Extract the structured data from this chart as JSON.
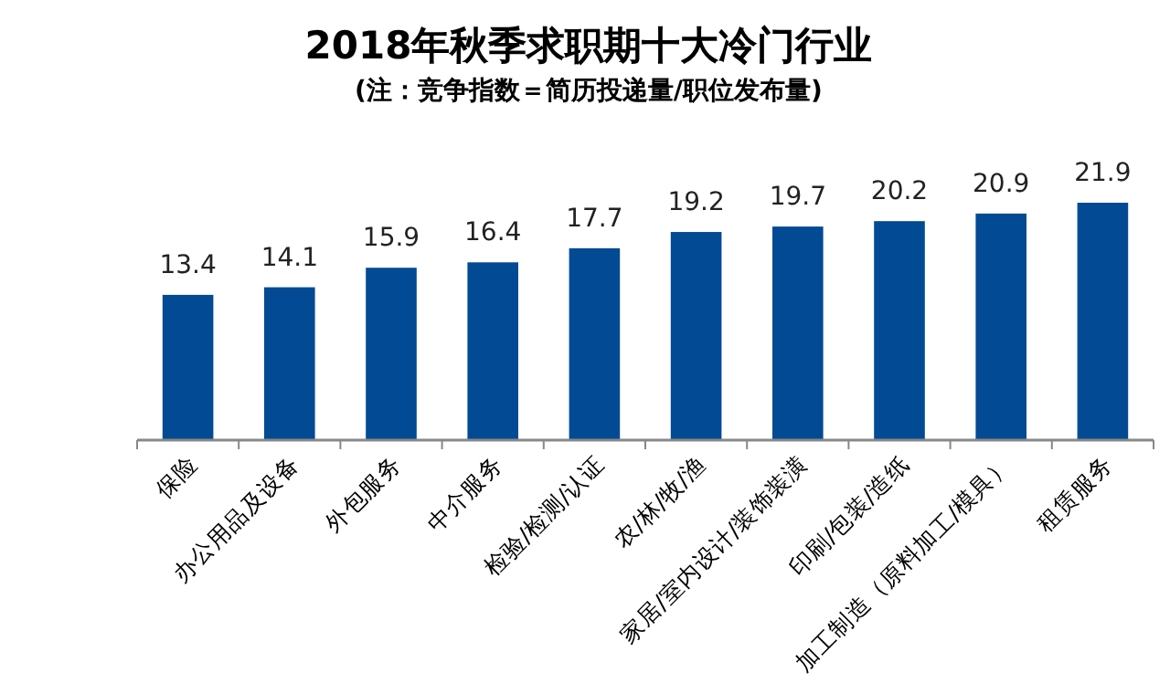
{
  "chart_data": {
    "type": "bar",
    "title": "2018年秋季求职期十大冷门行业",
    "subtitle": "(注：竞争指数＝简历投递量/职位发布量)",
    "categories": [
      "保险",
      "办公用品及设备",
      "外包服务",
      "中介服务",
      "检验/检测/认证",
      "农/林/牧/渔",
      "家居/室内设计/装饰装潢",
      "印刷/包装/造纸",
      "加工制造（原料加工/模具）",
      "租赁服务"
    ],
    "values": [
      13.4,
      14.1,
      15.9,
      16.4,
      17.7,
      19.2,
      19.7,
      20.2,
      20.9,
      21.9
    ],
    "color": "#034a94",
    "data_labels": true
  }
}
